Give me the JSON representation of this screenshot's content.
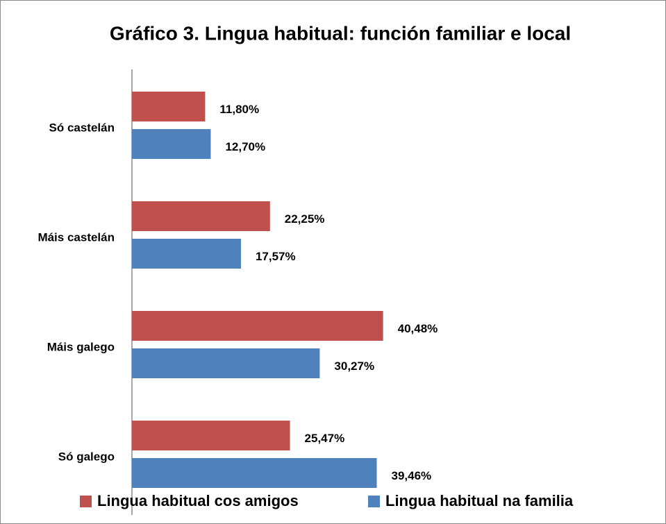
{
  "chart_data": {
    "type": "bar",
    "orientation": "horizontal",
    "title": "Gráfico 3. Lingua habitual: función familiar e local",
    "categories": [
      "Só castelán",
      "Máis castelán",
      "Máis galego",
      "Só galego"
    ],
    "series": [
      {
        "name": "Lingua habitual cos amigos",
        "color": "#c0504d",
        "values": [
          11.8,
          22.25,
          40.48,
          25.47
        ],
        "value_labels": [
          "11,80%",
          "22,25%",
          "40,48%",
          "25,47%"
        ]
      },
      {
        "name": "Lingua habitual na familia",
        "color": "#4f81bd",
        "values": [
          12.7,
          17.57,
          30.27,
          39.46
        ],
        "value_labels": [
          "12,70%",
          "17,57%",
          "30,27%",
          "39,46%"
        ]
      }
    ],
    "xlim": [
      0,
      45
    ],
    "legend": "bottom"
  }
}
